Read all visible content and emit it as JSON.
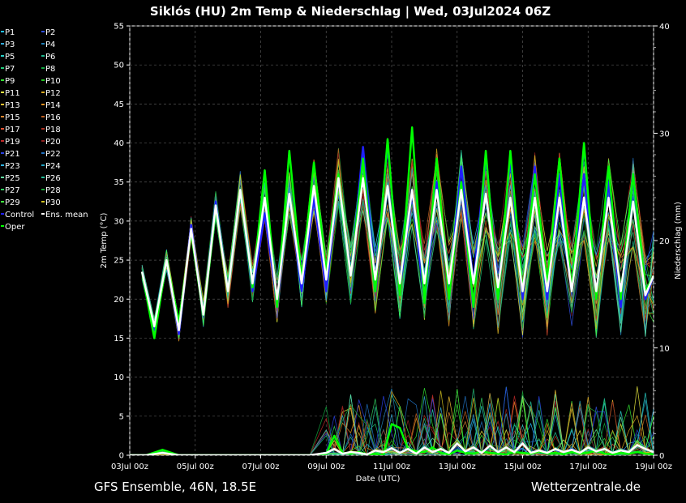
{
  "chart_data": {
    "type": "line",
    "title": "Siklós  (HU)  2m Temp & Niederschlag | Wed, 03Jul2024 06Z",
    "xlabel": "Date (UTC)",
    "ylabel": "2m Temp (°C)",
    "y2label": "Niederschlag (mm)",
    "ylim": [
      0,
      55
    ],
    "y2lim": [
      0,
      40
    ],
    "yticks": [
      0,
      5,
      10,
      15,
      20,
      25,
      30,
      35,
      40,
      45,
      50,
      55
    ],
    "y2ticks": [
      0,
      10,
      20,
      30,
      40
    ],
    "xlim_hours": [
      0,
      384
    ],
    "xticks": [
      {
        "hour": 0,
        "label": "03Jul 00z"
      },
      {
        "hour": 48,
        "label": "05Jul 00z"
      },
      {
        "hour": 96,
        "label": "07Jul 00z"
      },
      {
        "hour": 144,
        "label": "09Jul 00z"
      },
      {
        "hour": 192,
        "label": "11Jul 00z"
      },
      {
        "hour": 240,
        "label": "13Jul 00z"
      },
      {
        "hour": 288,
        "label": "15Jul 00z"
      },
      {
        "hour": 336,
        "label": "17Jul 00z"
      },
      {
        "hour": 384,
        "label": "19Jul 00z"
      }
    ],
    "grid": true,
    "legend_position": "left",
    "temperature_hours": [
      9,
      18,
      27,
      36,
      45,
      54,
      63,
      72,
      81,
      90,
      99,
      108,
      117,
      126,
      135,
      144,
      153,
      162,
      171,
      180,
      189,
      198,
      207,
      216,
      225,
      234,
      243,
      252,
      261,
      270,
      279,
      288,
      297,
      306,
      315,
      324,
      333,
      342,
      351,
      360,
      369,
      378,
      384
    ],
    "ens_mean_temp": [
      23.5,
      16.5,
      25,
      16,
      29,
      18,
      32,
      21,
      34,
      22,
      33,
      20,
      33.5,
      22,
      34.5,
      22.5,
      35.5,
      23,
      35.5,
      22.5,
      34.5,
      22,
      34,
      22,
      34,
      22,
      34,
      22,
      33.5,
      21.5,
      33,
      21,
      33,
      21,
      33,
      21,
      33,
      21,
      33,
      21,
      32.5,
      20.5,
      23
    ],
    "control_temp": [
      23.5,
      16,
      25,
      15.5,
      29.5,
      18,
      32.5,
      21,
      34,
      21,
      31,
      19.5,
      33.5,
      21,
      33,
      21,
      36,
      23,
      39.5,
      22,
      40,
      21,
      34,
      19.5,
      35,
      21,
      37,
      22,
      38.5,
      21,
      38,
      20,
      37,
      20,
      36,
      21,
      36,
      20,
      35,
      19,
      36,
      20,
      23
    ],
    "oper_temp": [
      23.5,
      15,
      25,
      17,
      28.5,
      18,
      32,
      21,
      34,
      21.5,
      36.5,
      19,
      39,
      22.5,
      37.5,
      23.5,
      36,
      23,
      38,
      21,
      40.5,
      20.5,
      42,
      19.5,
      38,
      20,
      35,
      19,
      39,
      20,
      39,
      21,
      36,
      22,
      38,
      21,
      40,
      20,
      37,
      20,
      36,
      21,
      23
    ],
    "precip_hours": [
      0,
      12,
      24,
      36,
      48,
      60,
      72,
      84,
      96,
      108,
      120,
      132,
      144,
      150,
      156,
      162,
      168,
      174,
      180,
      186,
      192,
      198,
      204,
      210,
      216,
      222,
      228,
      234,
      240,
      246,
      252,
      258,
      264,
      270,
      276,
      282,
      288,
      294,
      300,
      306,
      312,
      318,
      324,
      330,
      336,
      342,
      348,
      354,
      360,
      366,
      372,
      378,
      384
    ],
    "ens_mean_precip": [
      0,
      0,
      0.3,
      0,
      0,
      0,
      0,
      0,
      0,
      0,
      0,
      0,
      0.3,
      0.8,
      0.2,
      0.4,
      0.3,
      0.1,
      0.6,
      0.4,
      0.9,
      0.3,
      0.8,
      0.2,
      1,
      0.4,
      0.8,
      0.3,
      1.5,
      0.5,
      1,
      0.3,
      1.2,
      0.4,
      1,
      0.4,
      1.5,
      0.3,
      0.6,
      0.3,
      0.8,
      0.4,
      0.7,
      0.3,
      1,
      0.5,
      0.8,
      0.3,
      0.6,
      0.4,
      1.3,
      0.8,
      0.4
    ],
    "oper_precip": [
      0,
      0,
      0.7,
      0,
      0,
      0,
      0,
      0,
      0,
      0,
      0,
      0,
      0.2,
      2.5,
      0.3,
      0.2,
      0.4,
      0.1,
      0.2,
      0,
      4,
      3.5,
      0.8,
      0.5,
      0.4,
      1,
      0.3,
      0.1,
      0.6,
      0.3,
      0.2,
      0.5,
      0.3,
      0.2,
      0.1,
      0.4,
      0.3,
      0.2,
      0.5,
      0.2,
      0.3,
      0.1,
      0.4,
      0.2,
      0.3,
      0.6,
      0.2,
      0.1,
      0.3,
      0.2,
      0.4,
      0.2,
      0.1
    ]
  },
  "legend": {
    "items": [
      {
        "label": "P1",
        "color": "#20c0ff"
      },
      {
        "label": "P2",
        "color": "#3050e0"
      },
      {
        "label": "P3",
        "color": "#30a8d8"
      },
      {
        "label": "P4",
        "color": "#2080b8"
      },
      {
        "label": "P5",
        "color": "#28d0c8"
      },
      {
        "label": "P6",
        "color": "#20b890"
      },
      {
        "label": "P7",
        "color": "#20c878"
      },
      {
        "label": "P8",
        "color": "#10a840"
      },
      {
        "label": "P9",
        "color": "#30e030"
      },
      {
        "label": "P10",
        "color": "#20c020"
      },
      {
        "label": "P11",
        "color": "#e8e840"
      },
      {
        "label": "P12",
        "color": "#d8a820"
      },
      {
        "label": "P13",
        "color": "#f0c030"
      },
      {
        "label": "P14",
        "color": "#e09020"
      },
      {
        "label": "P15",
        "color": "#e08830"
      },
      {
        "label": "P16",
        "color": "#c06020"
      },
      {
        "label": "P17",
        "color": "#e05030"
      },
      {
        "label": "P18",
        "color": "#b03020"
      },
      {
        "label": "P19",
        "color": "#c02828"
      },
      {
        "label": "P20",
        "color": "#902020"
      },
      {
        "label": "P21",
        "color": "#2840e0"
      },
      {
        "label": "P22",
        "color": "#2070c0"
      },
      {
        "label": "P23",
        "color": "#30b0e0"
      },
      {
        "label": "P24",
        "color": "#20a0c0"
      },
      {
        "label": "P25",
        "color": "#60e0a0"
      },
      {
        "label": "P26",
        "color": "#20c098"
      },
      {
        "label": "P27",
        "color": "#30d060"
      },
      {
        "label": "P28",
        "color": "#18a838"
      },
      {
        "label": "P29",
        "color": "#40ff40"
      },
      {
        "label": "P30",
        "color": "#d0c020"
      },
      {
        "label": "Control",
        "color": "#2020ff"
      },
      {
        "label": "Ens. mean",
        "color": "#ffffff"
      },
      {
        "label": "Oper",
        "color": "#00ff00"
      }
    ]
  },
  "footer": {
    "left": "GFS Ensemble, 46N, 18.5E",
    "right": "Wetterzentrale.de"
  },
  "colors": {
    "background": "#000000",
    "grid": "#555555",
    "control": "#2020ff",
    "ens_mean": "#ffffff",
    "oper": "#00ff00"
  }
}
